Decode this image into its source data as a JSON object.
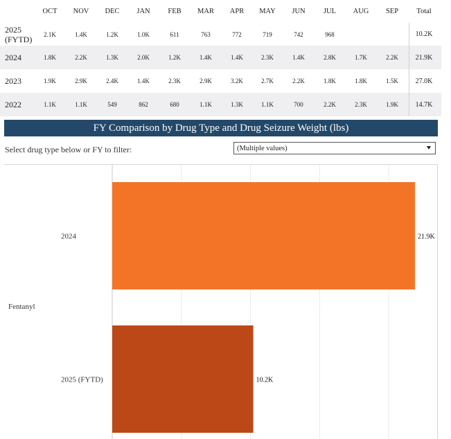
{
  "table": {
    "headers": [
      "OCT",
      "NOV",
      "DEC",
      "JAN",
      "FEB",
      "MAR",
      "APR",
      "MAY",
      "JUN",
      "JUL",
      "AUG",
      "SEP",
      "Total"
    ],
    "rows": [
      {
        "year": "2025\n(FYTD)",
        "values": [
          "2.1K",
          "1.4K",
          "1.2K",
          "1.0K",
          "611",
          "763",
          "772",
          "719",
          "742",
          "968",
          "",
          ""
        ],
        "total": "10.2K"
      },
      {
        "year": "2024",
        "values": [
          "1.8K",
          "2.2K",
          "1.3K",
          "2.0K",
          "1.2K",
          "1.4K",
          "1.4K",
          "2.3K",
          "1.4K",
          "2.8K",
          "1.7K",
          "2.2K"
        ],
        "total": "21.9K"
      },
      {
        "year": "2023",
        "values": [
          "1.9K",
          "2.9K",
          "2.4K",
          "1.4K",
          "2.3K",
          "2.9K",
          "3.2K",
          "2.7K",
          "2.2K",
          "1.8K",
          "1.8K",
          "1.5K"
        ],
        "total": "27.0K"
      },
      {
        "year": "2022",
        "values": [
          "1.1K",
          "1.1K",
          "549",
          "862",
          "680",
          "1.1K",
          "1.3K",
          "1.1K",
          "700",
          "2.2K",
          "2.3K",
          "1.9K"
        ],
        "total": "14.7K"
      }
    ]
  },
  "banner": {
    "title": "FY Comparison by Drug Type and Drug Seizure Weight (lbs)"
  },
  "filter": {
    "label": "Select drug type below or FY to filter:",
    "selected": "(Multiple values)"
  },
  "chart_data": {
    "type": "bar",
    "orientation": "horizontal",
    "group": "Fentanyl",
    "categories": [
      "2024",
      "2025 (FYTD)"
    ],
    "values": [
      21900,
      10200
    ],
    "value_labels": [
      "21.9K",
      "10.2K"
    ],
    "colors": [
      "#f47427",
      "#bd4817"
    ],
    "xlim": [
      0,
      22000
    ],
    "grid": true
  }
}
